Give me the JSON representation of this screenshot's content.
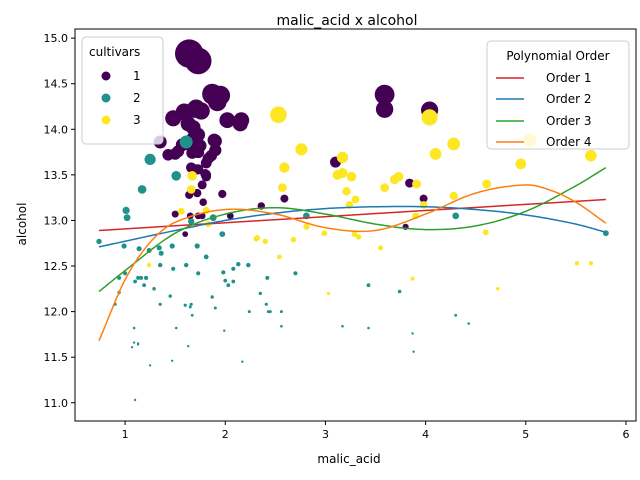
{
  "chart_data": {
    "type": "scatter",
    "title": "malic_acid x alcohol",
    "xlabel": "malic_acid",
    "ylabel": "alcohol",
    "xlim": [
      0.5,
      6.1
    ],
    "ylim": [
      10.8,
      15.1
    ],
    "xticks": [
      1,
      2,
      3,
      4,
      5,
      6
    ],
    "yticks": [
      11.0,
      11.5,
      12.0,
      12.5,
      13.0,
      13.5,
      14.0,
      14.5,
      15.0
    ],
    "xtick_labels": [
      "1",
      "2",
      "3",
      "4",
      "5",
      "6"
    ],
    "ytick_labels": [
      "11.0",
      "11.5",
      "12.0",
      "12.5",
      "13.0",
      "13.5",
      "14.0",
      "14.5",
      "15.0"
    ],
    "grid": false,
    "marker_size_note": "marker area grows with alcohol",
    "legends": {
      "cultivars": {
        "title": "cultivars",
        "position": "top-left",
        "entries": [
          {
            "label": "1",
            "color": "#440154"
          },
          {
            "label": "2",
            "color": "#21918c"
          },
          {
            "label": "3",
            "color": "#fde725"
          }
        ]
      },
      "fits": {
        "title": "Polynomial Order",
        "position": "top-right",
        "entries": [
          {
            "label": "Order 1",
            "color": "#d62728"
          },
          {
            "label": "Order 2",
            "color": "#1f77b4"
          },
          {
            "label": "Order 3",
            "color": "#2ca02c"
          },
          {
            "label": "Order 4",
            "color": "#ff7f0e"
          }
        ]
      }
    },
    "series": [
      {
        "name": "1",
        "color": "#440154",
        "points": [
          [
            1.71,
            14.23
          ],
          [
            1.78,
            13.2
          ],
          [
            2.36,
            13.16
          ],
          [
            1.95,
            14.37
          ],
          [
            2.59,
            13.24
          ],
          [
            1.76,
            14.2
          ],
          [
            1.87,
            14.39
          ],
          [
            2.15,
            14.06
          ],
          [
            1.64,
            14.83
          ],
          [
            1.35,
            13.86
          ],
          [
            2.16,
            14.1
          ],
          [
            1.48,
            14.12
          ],
          [
            1.73,
            13.75
          ],
          [
            1.73,
            14.75
          ],
          [
            1.87,
            14.38
          ],
          [
            1.81,
            13.63
          ],
          [
            1.92,
            14.3
          ],
          [
            1.57,
            13.83
          ],
          [
            1.59,
            14.19
          ],
          [
            3.1,
            13.64
          ],
          [
            1.63,
            14.06
          ],
          [
            3.8,
            12.93
          ],
          [
            1.86,
            13.71
          ],
          [
            1.6,
            12.85
          ],
          [
            1.81,
            13.5
          ],
          [
            2.05,
            13.05
          ],
          [
            1.77,
            13.39
          ],
          [
            1.72,
            13.3
          ],
          [
            1.9,
            13.87
          ],
          [
            1.68,
            14.02
          ],
          [
            1.5,
            13.73
          ],
          [
            1.66,
            13.58
          ],
          [
            1.83,
            13.68
          ],
          [
            1.53,
            13.76
          ],
          [
            1.8,
            13.51
          ],
          [
            1.81,
            13.48
          ],
          [
            1.64,
            13.28
          ],
          [
            1.65,
            13.05
          ],
          [
            1.5,
            13.07
          ],
          [
            3.59,
            14.22
          ],
          [
            1.71,
            13.56
          ],
          [
            3.84,
            13.41
          ],
          [
            1.89,
            13.88
          ],
          [
            3.98,
            13.24
          ],
          [
            1.77,
            13.05
          ],
          [
            4.04,
            14.21
          ],
          [
            3.59,
            14.38
          ],
          [
            1.68,
            13.9
          ],
          [
            2.02,
            14.1
          ],
          [
            1.73,
            13.94
          ],
          [
            1.73,
            13.05
          ],
          [
            1.65,
            13.83
          ],
          [
            1.75,
            13.82
          ],
          [
            1.9,
            13.77
          ],
          [
            1.67,
            13.74
          ],
          [
            1.73,
            13.56
          ],
          [
            1.7,
            14.22
          ],
          [
            1.97,
            13.29
          ],
          [
            1.43,
            13.72
          ]
        ]
      },
      {
        "name": "2",
        "color": "#21918c",
        "points": [
          [
            0.94,
            12.37
          ],
          [
            1.1,
            12.33
          ],
          [
            1.36,
            12.64
          ],
          [
            1.25,
            13.67
          ],
          [
            1.13,
            12.37
          ],
          [
            1.45,
            12.17
          ],
          [
            1.21,
            12.37
          ],
          [
            1.01,
            13.11
          ],
          [
            1.17,
            13.34
          ],
          [
            0.94,
            12.21
          ],
          [
            1.19,
            12.29
          ],
          [
            1.61,
            13.86
          ],
          [
            1.51,
            13.49
          ],
          [
            1.66,
            12.99
          ],
          [
            1.67,
            11.96
          ],
          [
            1.09,
            11.66
          ],
          [
            1.88,
            13.03
          ],
          [
            3.17,
            11.84
          ],
          [
            2.08,
            12.33
          ],
          [
            1.34,
            12.7
          ],
          [
            2.45,
            12.0
          ],
          [
            1.72,
            12.72
          ],
          [
            0.9,
            12.08
          ],
          [
            2.81,
            13.05
          ],
          [
            2.56,
            11.84
          ],
          [
            1.24,
            12.67
          ],
          [
            1.87,
            12.16
          ],
          [
            1.13,
            11.65
          ],
          [
            1.13,
            11.64
          ],
          [
            2.41,
            12.08
          ],
          [
            1.35,
            12.08
          ],
          [
            2.43,
            12.0
          ],
          [
            1.14,
            12.69
          ],
          [
            3.43,
            12.29
          ],
          [
            1.16,
            12.37
          ],
          [
            1.09,
            11.82
          ],
          [
            1.21,
            12.37
          ],
          [
            1.81,
            12.6
          ],
          [
            2.0,
            12.34
          ],
          [
            3.43,
            11.82
          ],
          [
            1.35,
            12.51
          ],
          [
            1.73,
            12.42
          ],
          [
            1.29,
            12.25
          ],
          [
            0.99,
            12.72
          ],
          [
            3.74,
            12.22
          ],
          [
            1.07,
            11.61
          ],
          [
            1.47,
            11.46
          ],
          [
            2.13,
            12.52
          ],
          [
            3.87,
            11.76
          ],
          [
            1.25,
            11.41
          ],
          [
            1.66,
            12.08
          ],
          [
            1.1,
            11.03
          ],
          [
            1.51,
            11.82
          ],
          [
            1.0,
            12.42
          ],
          [
            0.74,
            12.77
          ],
          [
            2.24,
            12.0
          ],
          [
            2.17,
            11.45
          ],
          [
            3.88,
            11.56
          ],
          [
            2.7,
            12.42
          ],
          [
            4.3,
            13.05
          ],
          [
            4.43,
            11.87
          ],
          [
            1.6,
            12.07
          ],
          [
            1.98,
            12.43
          ],
          [
            1.99,
            11.79
          ],
          [
            2.42,
            12.37
          ],
          [
            1.9,
            12.04
          ],
          [
            5.8,
            12.86
          ],
          [
            2.56,
            12.0
          ],
          [
            4.3,
            11.96
          ],
          [
            1.97,
            12.85
          ],
          [
            2.03,
            12.29
          ],
          [
            1.47,
            12.72
          ],
          [
            1.63,
            11.62
          ],
          [
            1.48,
            12.47
          ],
          [
            2.35,
            12.2
          ],
          [
            1.65,
            12.05
          ],
          [
            1.61,
            12.51
          ],
          [
            1.02,
            13.03
          ],
          [
            2.08,
            12.47
          ],
          [
            2.23,
            12.51
          ]
        ]
      },
      {
        "name": "3",
        "color": "#fde725",
        "points": [
          [
            2.99,
            12.86
          ],
          [
            3.55,
            12.7
          ],
          [
            2.32,
            12.81
          ],
          [
            2.76,
            13.78
          ],
          [
            2.59,
            13.58
          ],
          [
            3.91,
            13.4
          ],
          [
            4.28,
            13.27
          ],
          [
            3.24,
            13.17
          ],
          [
            4.04,
            14.13
          ],
          [
            2.57,
            13.36
          ],
          [
            3.3,
            13.23
          ],
          [
            3.26,
            13.48
          ],
          [
            5.04,
            13.88
          ],
          [
            4.61,
            13.4
          ],
          [
            3.29,
            12.85
          ],
          [
            3.17,
            13.52
          ],
          [
            5.51,
            12.53
          ],
          [
            3.59,
            13.36
          ],
          [
            2.53,
            14.16
          ],
          [
            2.68,
            12.79
          ],
          [
            3.9,
            13.05
          ],
          [
            2.4,
            12.77
          ],
          [
            1.83,
            12.96
          ],
          [
            4.1,
            13.73
          ],
          [
            3.17,
            13.69
          ],
          [
            5.65,
            13.71
          ],
          [
            3.03,
            12.2
          ],
          [
            3.69,
            13.45
          ],
          [
            4.28,
            13.84
          ],
          [
            4.6,
            12.87
          ],
          [
            2.81,
            12.93
          ],
          [
            1.67,
            13.49
          ],
          [
            1.24,
            12.51
          ],
          [
            1.81,
            13.11
          ],
          [
            4.72,
            12.25
          ],
          [
            5.65,
            12.53
          ],
          [
            3.73,
            13.48
          ],
          [
            3.98,
            13.17
          ],
          [
            2.54,
            12.6
          ],
          [
            3.21,
            13.32
          ],
          [
            1.66,
            13.34
          ],
          [
            4.95,
            13.62
          ],
          [
            3.33,
            12.82
          ],
          [
            3.12,
            13.5
          ],
          [
            1.56,
            13.1
          ],
          [
            3.87,
            12.36
          ],
          [
            2.31,
            12.8
          ]
        ]
      }
    ],
    "fits": [
      {
        "name": "Order 1",
        "color": "#d62728",
        "x": [
          0.74,
          5.8
        ],
        "y": [
          12.89,
          13.23
        ]
      },
      {
        "name": "Order 2",
        "color": "#1f77b4",
        "x": [
          0.74,
          1.5,
          2.0,
          2.5,
          3.0,
          3.5,
          4.0,
          4.5,
          5.0,
          5.5,
          5.8
        ],
        "y": [
          12.71,
          12.89,
          13.0,
          13.08,
          13.13,
          13.15,
          13.15,
          13.12,
          13.06,
          12.96,
          12.87
        ]
      },
      {
        "name": "Order 3",
        "color": "#2ca02c",
        "x": [
          0.74,
          1.0,
          1.5,
          2.0,
          2.5,
          3.0,
          3.5,
          4.0,
          4.5,
          5.0,
          5.5,
          5.8
        ],
        "y": [
          12.22,
          12.45,
          12.86,
          13.07,
          13.14,
          13.07,
          12.96,
          12.9,
          12.94,
          13.1,
          13.38,
          13.58
        ]
      },
      {
        "name": "Order 4",
        "color": "#ff7f0e",
        "x": [
          0.74,
          1.0,
          1.25,
          1.5,
          2.0,
          2.5,
          3.0,
          3.5,
          4.0,
          4.5,
          5.0,
          5.25,
          5.5,
          5.8
        ],
        "y": [
          11.68,
          12.35,
          12.76,
          12.98,
          13.12,
          13.07,
          12.92,
          12.89,
          13.07,
          13.3,
          13.39,
          13.33,
          13.2,
          12.97
        ]
      }
    ]
  }
}
